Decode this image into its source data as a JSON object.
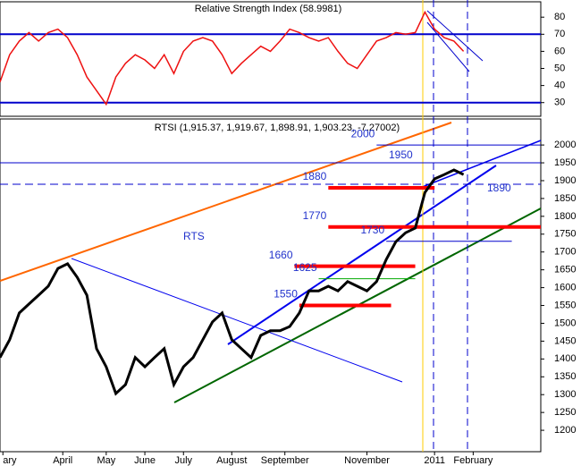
{
  "chart_data": [
    {
      "type": "line",
      "title": "Relative Strength Index (58.9981)",
      "x": [
        0,
        1,
        2,
        3,
        4,
        5,
        6,
        7,
        8,
        9,
        10,
        11,
        12,
        13,
        14,
        15,
        16,
        17,
        18,
        19,
        20,
        21,
        22,
        23,
        24,
        25,
        26,
        27,
        28,
        29,
        30,
        31,
        32,
        33,
        34,
        35,
        36,
        37,
        38,
        39,
        40,
        41,
        42,
        43,
        44,
        45,
        46,
        47,
        48
      ],
      "series": [
        {
          "name": "RSI",
          "color": "#ee1111",
          "values": [
            42,
            58,
            66,
            71,
            66,
            71,
            73,
            68,
            58,
            45,
            37,
            29,
            45,
            53,
            58,
            55,
            50,
            58,
            47,
            60,
            66,
            68,
            66,
            58,
            47,
            53,
            58,
            63,
            60,
            66,
            73,
            71,
            68,
            66,
            68,
            60,
            53,
            50,
            58,
            66,
            68,
            71,
            70,
            71,
            83,
            73,
            68,
            66,
            60
          ]
        }
      ],
      "xlim": [
        0,
        56
      ],
      "ylim": [
        22,
        89
      ],
      "yticks": [
        30,
        40,
        50,
        60,
        70,
        80
      ],
      "hlines": [
        70,
        30
      ]
    },
    {
      "type": "line",
      "title": "RTSI (1,915.37, 1,919.67, 1,898.91, 1,903.23, -7.27002)",
      "label": "RTS",
      "x": [
        0,
        1,
        2,
        3,
        4,
        5,
        6,
        7,
        8,
        9,
        10,
        11,
        12,
        13,
        14,
        15,
        16,
        17,
        18,
        19,
        20,
        21,
        22,
        23,
        24,
        25,
        26,
        27,
        28,
        29,
        30,
        31,
        32,
        33,
        34,
        35,
        36,
        37,
        38,
        39,
        40,
        41,
        42,
        43,
        44,
        45,
        46,
        47,
        48
      ],
      "series": [
        {
          "name": "RTSI",
          "color": "#000000",
          "values": [
            1404,
            1454,
            1529,
            1554,
            1579,
            1604,
            1654,
            1667,
            1629,
            1579,
            1429,
            1378,
            1303,
            1328,
            1404,
            1378,
            1404,
            1429,
            1328,
            1378,
            1404,
            1454,
            1504,
            1529,
            1454,
            1429,
            1404,
            1466,
            1479,
            1479,
            1491,
            1529,
            1591,
            1591,
            1604,
            1591,
            1617,
            1604,
            1591,
            1617,
            1679,
            1729,
            1754,
            1767,
            1867,
            1905,
            1917,
            1930,
            1917
          ]
        }
      ],
      "xlim": [
        0,
        56
      ],
      "ylim": [
        1140,
        2073
      ],
      "yticks": [
        1200,
        1250,
        1300,
        1350,
        1400,
        1450,
        1500,
        1550,
        1600,
        1650,
        1700,
        1750,
        1800,
        1850,
        1900,
        1950,
        2000
      ],
      "xticks": [
        {
          "value": 0.3,
          "label": "ary"
        },
        {
          "value": 6.5,
          "label": "April"
        },
        {
          "value": 11,
          "label": "May"
        },
        {
          "value": 15,
          "label": "June"
        },
        {
          "value": 19,
          "label": "July"
        },
        {
          "value": 24,
          "label": "August"
        },
        {
          "value": 29.5,
          "label": "September"
        },
        {
          "value": 38,
          "label": "November"
        },
        {
          "value": 45,
          "label": "2011"
        },
        {
          "value": 49,
          "label": "February"
        }
      ],
      "levels": [
        {
          "label": "1880",
          "value": 1880,
          "from": 34,
          "to": 45,
          "color": "#ff0000"
        },
        {
          "label": "1770",
          "value": 1770,
          "from": 34,
          "to": 56,
          "color": "#ff0000"
        },
        {
          "label": "1660",
          "value": 1660,
          "from": 30.5,
          "to": 43,
          "color": "#ff0000"
        },
        {
          "label": "1550",
          "value": 1550,
          "from": 31,
          "to": 40.5,
          "color": "#ff0000"
        },
        {
          "label": "1730",
          "value": 1730,
          "from": 40,
          "to": 53,
          "color": "#0000cc"
        },
        {
          "label": "1625",
          "value": 1625,
          "from": 33,
          "to": 43,
          "color": "#00aa00"
        },
        {
          "label": "2000",
          "value": 2000,
          "from": 39,
          "to": 56,
          "color": "#0000cc"
        },
        {
          "label": "1950",
          "value": 1950,
          "from": 0,
          "to": 56,
          "color": "#0000cc"
        },
        {
          "label": "1890",
          "value": 1890,
          "from": 0,
          "to": 56,
          "color": "#0000cc"
        }
      ]
    }
  ]
}
